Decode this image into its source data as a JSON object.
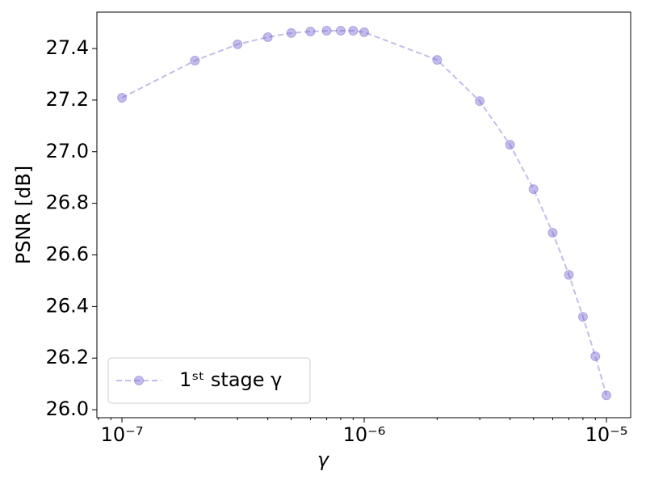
{
  "chart_data": {
    "type": "line",
    "xlabel": "γ",
    "ylabel": "PSNR [dB]",
    "xscale": "log",
    "x": [
      1e-07,
      2e-07,
      3e-07,
      4e-07,
      5e-07,
      6e-07,
      7e-07,
      8e-07,
      9e-07,
      1e-06,
      2e-06,
      3e-06,
      4e-06,
      5e-06,
      6e-06,
      7e-06,
      8e-06,
      9e-06,
      1e-05
    ],
    "series": [
      {
        "name": "1ˢᵗ stage γ",
        "color": "#6a5acd",
        "alpha": 0.4,
        "values": [
          27.209,
          27.353,
          27.416,
          27.444,
          27.46,
          27.466,
          27.469,
          27.469,
          27.469,
          27.463,
          27.356,
          27.196,
          27.027,
          26.855,
          26.686,
          26.523,
          26.36,
          26.207,
          26.056
        ]
      }
    ],
    "xlim": [
      7.88e-08,
      1.259e-05
    ],
    "ylim": [
      25.969,
      27.541
    ],
    "xticks": [
      {
        "value": 1e-07,
        "label": "10⁻⁷"
      },
      {
        "value": 1e-06,
        "label": "10⁻⁶"
      },
      {
        "value": 1e-05,
        "label": "10⁻⁵"
      }
    ],
    "xminorticks": [
      8e-08,
      9e-08,
      2e-07,
      3e-07,
      4e-07,
      5e-07,
      6e-07,
      7e-07,
      8e-07,
      9e-07,
      2e-06,
      3e-06,
      4e-06,
      5e-06,
      6e-06,
      7e-06,
      8e-06,
      9e-06
    ],
    "yticks": [
      {
        "value": 26,
        "label": "26.0"
      },
      26.2,
      26.4,
      26.6,
      26.8,
      {
        "value": 27,
        "label": "27.0"
      },
      27.2,
      27.4
    ],
    "legend": "lower left",
    "grid": false
  }
}
